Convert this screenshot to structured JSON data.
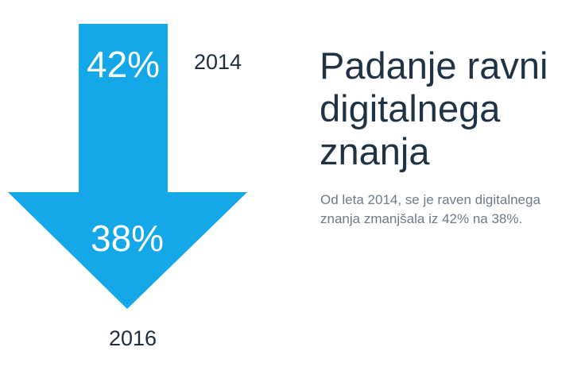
{
  "colors": {
    "arrow": "#14a8e8",
    "title": "#1f3344",
    "year": "#1f2e3d",
    "description": "#6d7a85"
  },
  "start": {
    "value": "42%",
    "year": "2014"
  },
  "end": {
    "value": "38%",
    "year": "2016"
  },
  "title": "Padanje ravni digitalnega znanja",
  "description": "Od leta 2014, se je raven digitalnega znanja zmanjšala iz 42% na 38%."
}
